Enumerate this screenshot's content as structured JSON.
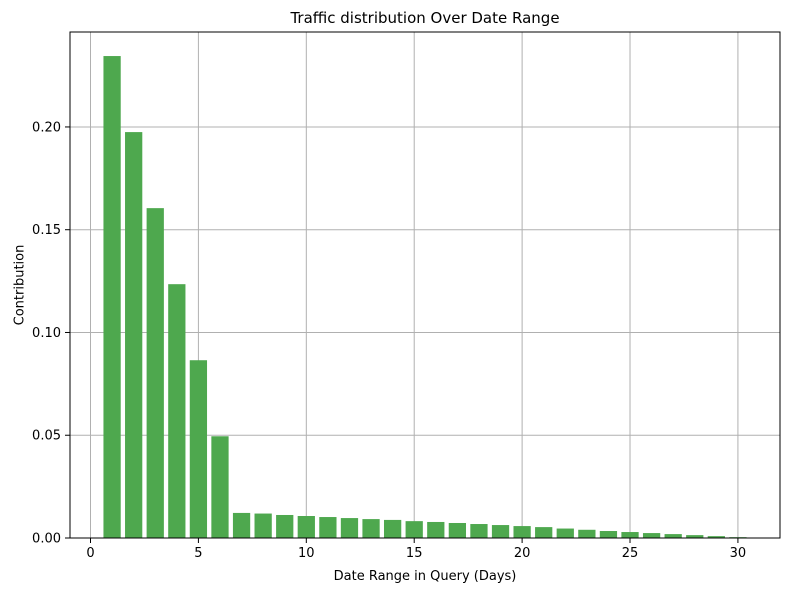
{
  "chart_data": {
    "type": "bar",
    "title": "Traffic distribution Over Date Range",
    "xlabel": "Date Range in Query (Days)",
    "ylabel": "Contribution",
    "x": [
      1,
      2,
      3,
      4,
      5,
      6,
      7,
      8,
      9,
      10,
      11,
      12,
      13,
      14,
      15,
      16,
      17,
      18,
      19,
      20,
      21,
      22,
      23,
      24,
      25,
      26,
      27,
      28,
      29,
      30
    ],
    "values": [
      0.2345,
      0.1975,
      0.1605,
      0.1235,
      0.0865,
      0.0495,
      0.0122,
      0.0119,
      0.0112,
      0.0107,
      0.0102,
      0.0097,
      0.0092,
      0.0088,
      0.0082,
      0.0078,
      0.0073,
      0.0068,
      0.0063,
      0.0058,
      0.0053,
      0.0046,
      0.004,
      0.0034,
      0.0029,
      0.0024,
      0.0019,
      0.0014,
      0.0009,
      0.0004
    ],
    "xlim": [
      -0.95,
      31.95
    ],
    "ylim": [
      0,
      0.2462
    ],
    "xticks": [
      0,
      5,
      10,
      15,
      20,
      25,
      30
    ],
    "xtick_labels": [
      "0",
      "5",
      "10",
      "15",
      "20",
      "25",
      "30"
    ],
    "yticks": [
      0,
      0.05,
      0.1,
      0.15,
      0.2
    ],
    "ytick_labels": [
      "0.00",
      "0.05",
      "0.10",
      "0.15",
      "0.20"
    ],
    "grid": true,
    "bar_color": "#4ea84e",
    "grid_color": "#b0b0b0",
    "legend": "none"
  }
}
